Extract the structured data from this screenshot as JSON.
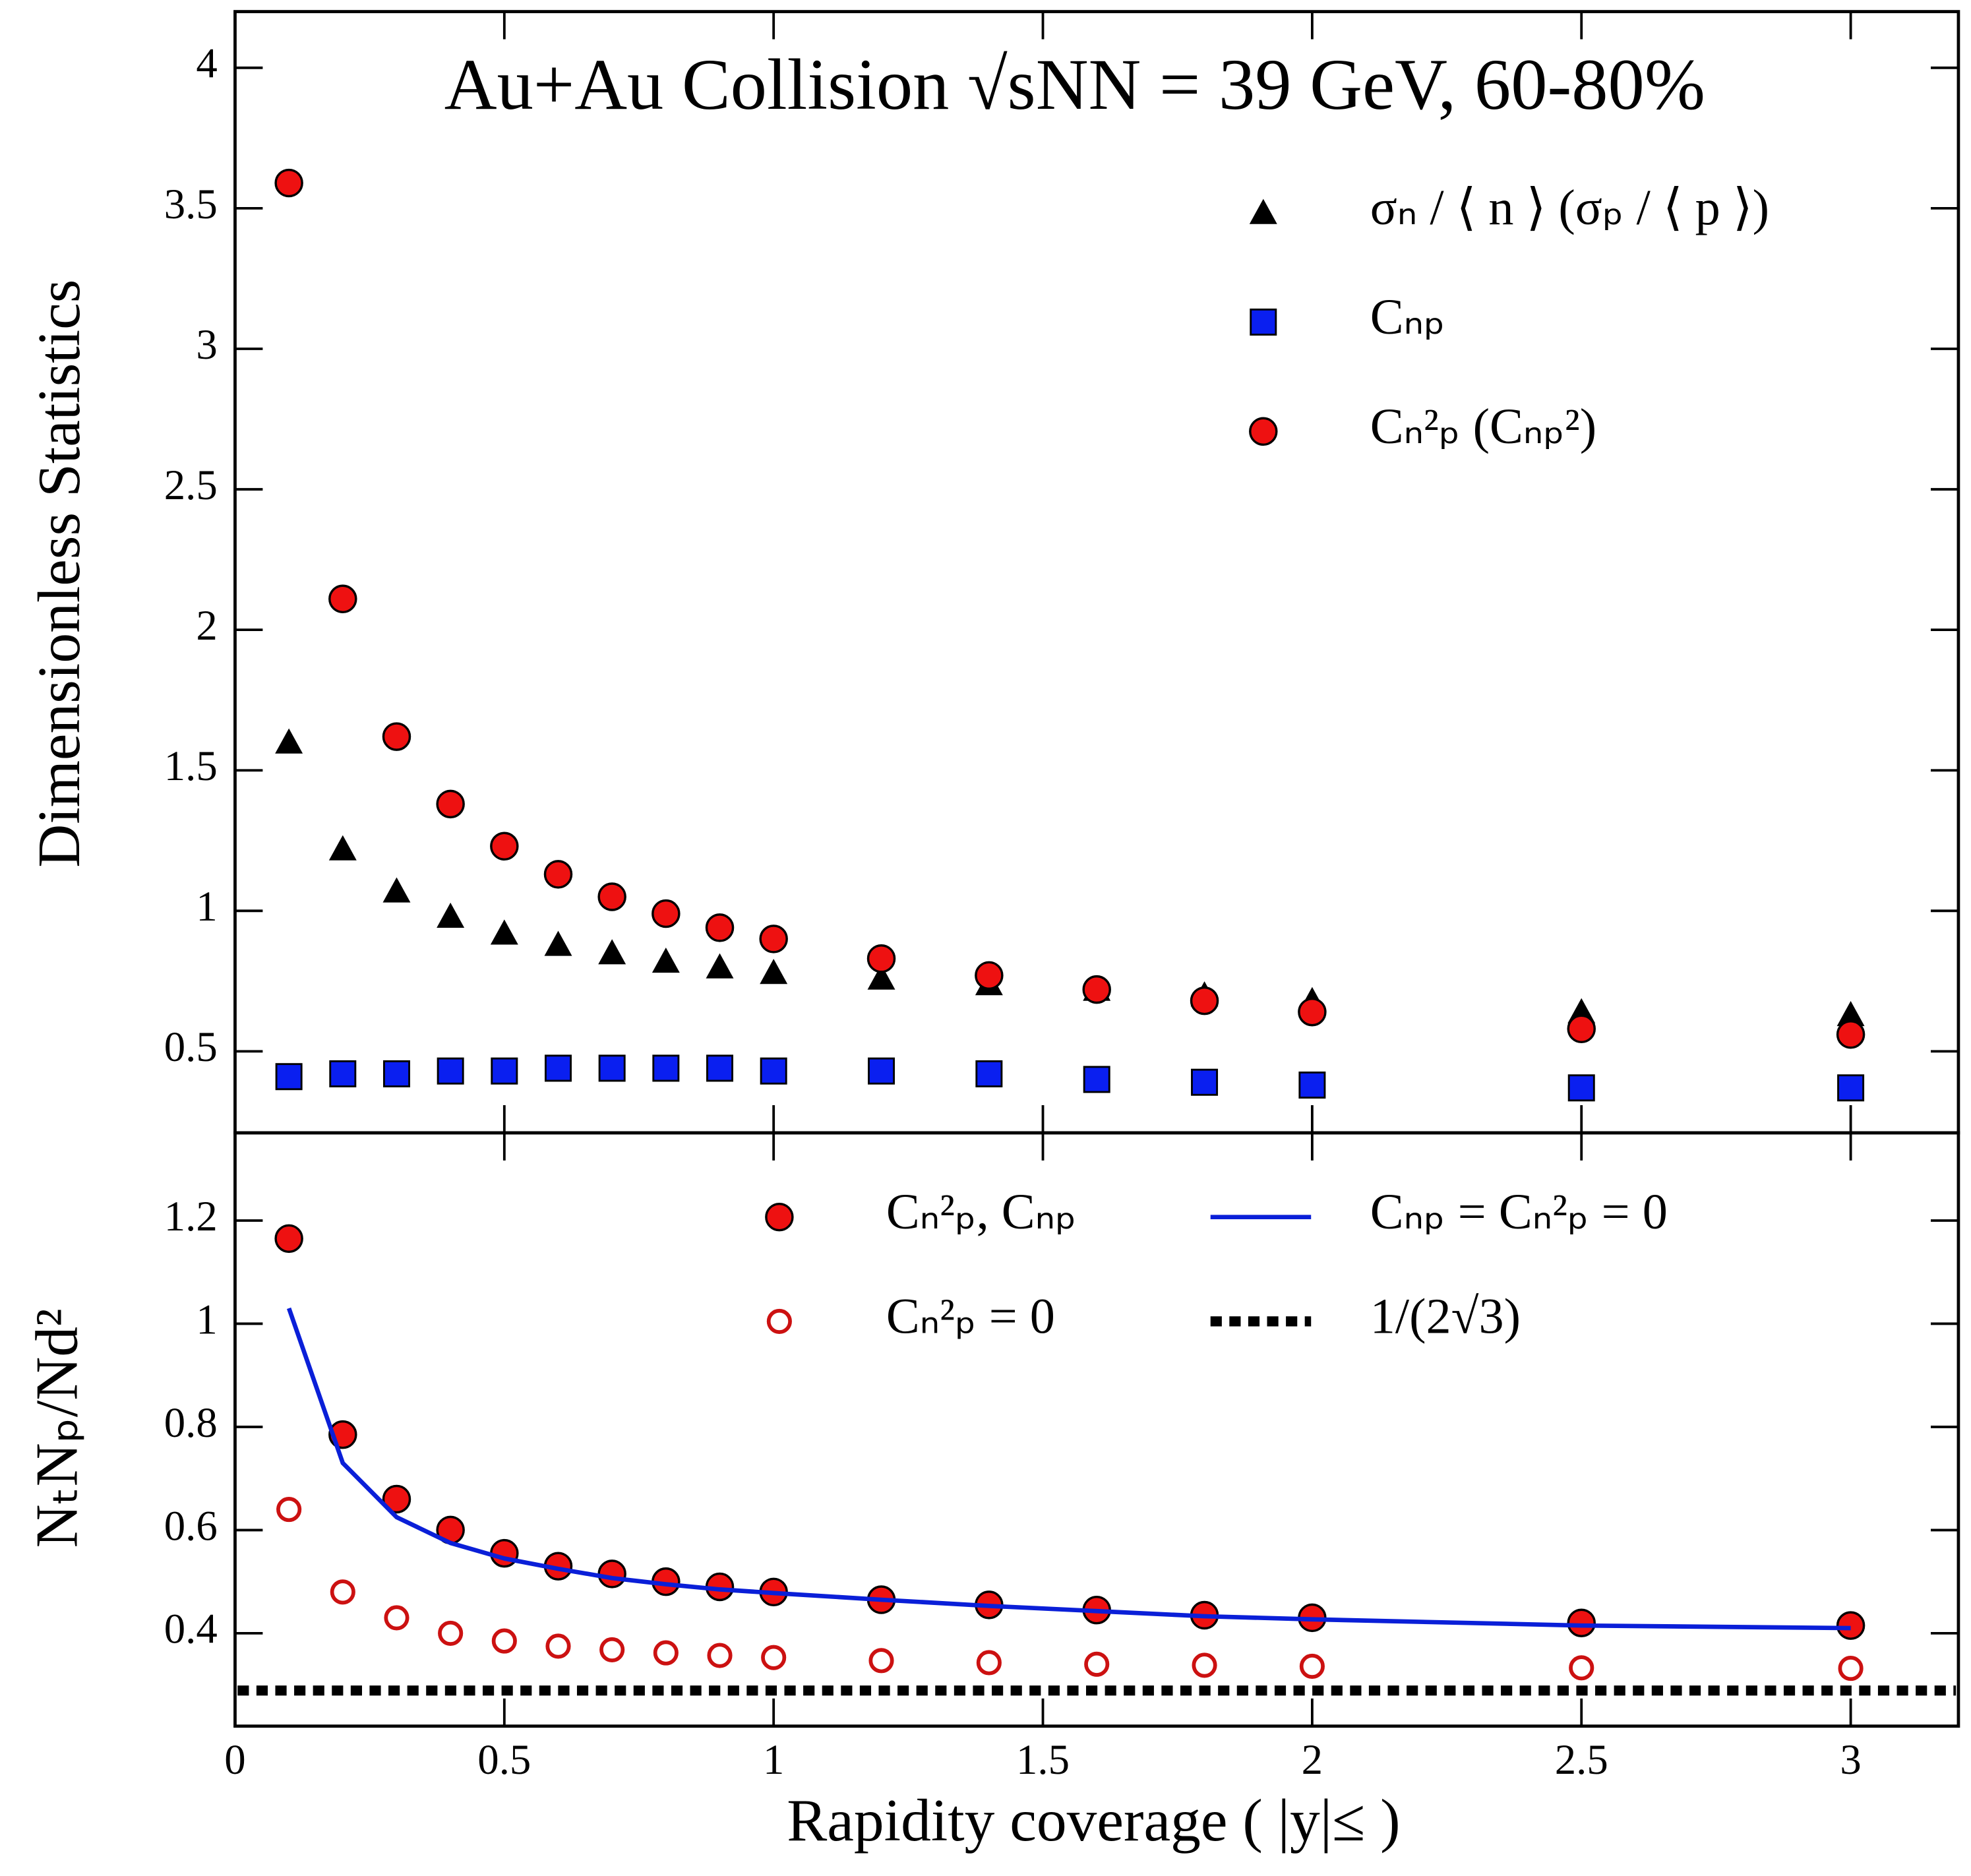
{
  "chart_data": [
    {
      "type": "scatter",
      "title": "Au+Au Collision √sNN = 39 GeV, 60-80%",
      "ylabel": "Dimensionless Statistics",
      "x": [
        0.1,
        0.2,
        0.3,
        0.4,
        0.5,
        0.6,
        0.7,
        0.8,
        0.9,
        1.0,
        1.2,
        1.4,
        1.6,
        1.8,
        2.0,
        2.5,
        3.0
      ],
      "xlim": [
        0,
        3.2
      ],
      "xticks": [
        0,
        0.5,
        1,
        1.5,
        2,
        2.5,
        3
      ],
      "ylim": [
        0.21,
        4.2
      ],
      "yticks": [
        0.5,
        1,
        1.5,
        2,
        2.5,
        3,
        3.5,
        4
      ],
      "series": [
        {
          "name": "σₙ / ⟨ n ⟩  (σₚ / ⟨ p ⟩)",
          "marker": "triangle",
          "color": "#000000",
          "values": [
            1.6,
            1.22,
            1.07,
            0.98,
            0.92,
            0.88,
            0.85,
            0.82,
            0.8,
            0.78,
            0.76,
            0.74,
            0.72,
            0.7,
            0.68,
            0.64,
            0.63
          ]
        },
        {
          "name": "Cₙₚ",
          "marker": "square",
          "color": "#0a1ff0",
          "values": [
            0.41,
            0.42,
            0.42,
            0.43,
            0.43,
            0.44,
            0.44,
            0.44,
            0.44,
            0.43,
            0.43,
            0.42,
            0.4,
            0.39,
            0.38,
            0.37,
            0.37
          ]
        },
        {
          "name": "Cₙ²ₚ  (Cₙₚ²)",
          "marker": "circle",
          "color": "#ee1111",
          "values": [
            3.59,
            2.11,
            1.62,
            1.38,
            1.23,
            1.13,
            1.05,
            0.99,
            0.94,
            0.9,
            0.83,
            0.77,
            0.72,
            0.68,
            0.64,
            0.58,
            0.56
          ]
        }
      ]
    },
    {
      "type": "scatter",
      "xlabel": "Rapidity coverage ( |y|≤ )",
      "ylabel": "NₜNₚ/Nd²",
      "x": [
        0.1,
        0.2,
        0.3,
        0.4,
        0.5,
        0.6,
        0.7,
        0.8,
        0.9,
        1.0,
        1.2,
        1.4,
        1.6,
        1.8,
        2.0,
        2.5,
        3.0
      ],
      "xlim": [
        0,
        3.2
      ],
      "xticks": [
        0,
        0.5,
        1,
        1.5,
        2,
        2.5,
        3
      ],
      "ylim": [
        0.22,
        1.37
      ],
      "yticks": [
        0.4,
        0.6,
        0.8,
        1,
        1.2
      ],
      "series": [
        {
          "name": "Cₙ²ₚ, Cₙₚ",
          "marker": "circle",
          "color": "#ee1111",
          "values": [
            1.165,
            0.785,
            0.66,
            0.6,
            0.555,
            0.53,
            0.515,
            0.5,
            0.49,
            0.48,
            0.465,
            0.455,
            0.445,
            0.435,
            0.43,
            0.42,
            0.415
          ]
        },
        {
          "name": "Cₙ²ₚ = 0",
          "marker": "open-circle",
          "color": "#cc1111",
          "values": [
            0.64,
            0.48,
            0.43,
            0.4,
            0.385,
            0.375,
            0.368,
            0.362,
            0.357,
            0.353,
            0.347,
            0.343,
            0.34,
            0.338,
            0.336,
            0.333,
            0.332
          ]
        },
        {
          "name": "Cₙₚ = Cₙ²ₚ = 0",
          "marker": "line",
          "color": "#0a1fd8",
          "values": [
            1.03,
            0.73,
            0.625,
            0.575,
            0.545,
            0.525,
            0.507,
            0.495,
            0.485,
            0.478,
            0.465,
            0.453,
            0.443,
            0.433,
            0.427,
            0.415,
            0.41
          ]
        }
      ],
      "hlines": [
        {
          "name": "1/(2√3)",
          "value": 0.289,
          "color": "#000000",
          "style": "dotted"
        }
      ]
    }
  ]
}
